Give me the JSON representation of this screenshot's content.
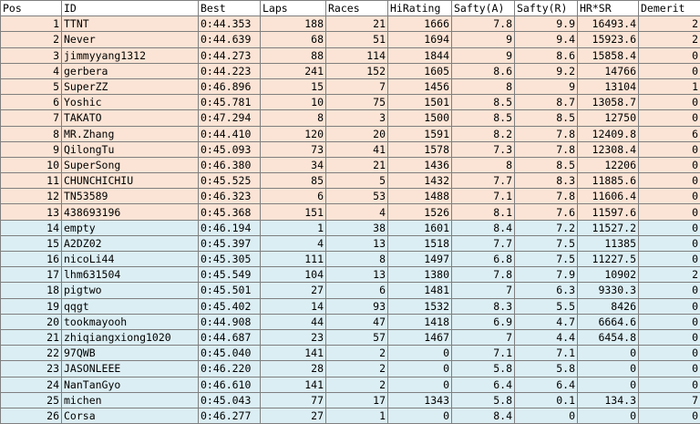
{
  "headers": [
    "Pos",
    "ID",
    "Best",
    "Laps",
    "Races",
    "HiRating",
    "Safty(A)",
    "Safty(R)",
    "HR*SR",
    "Demerit"
  ],
  "rows": [
    [
      "1",
      "TTNT",
      "0:44.353",
      "188",
      "21",
      "1666",
      "7.8",
      "9.9",
      "16493.4",
      "2"
    ],
    [
      "2",
      "Never",
      "0:44.639",
      "68",
      "51",
      "1694",
      "9",
      "9.4",
      "15923.6",
      "2"
    ],
    [
      "3",
      "jimmyyang1312",
      "0:44.273",
      "88",
      "114",
      "1844",
      "9",
      "8.6",
      "15858.4",
      "0"
    ],
    [
      "4",
      "gerbera",
      "0:44.223",
      "241",
      "152",
      "1605",
      "8.6",
      "9.2",
      "14766",
      "0"
    ],
    [
      "5",
      "SuperZZ",
      "0:46.896",
      "15",
      "7",
      "1456",
      "8",
      "9",
      "13104",
      "1"
    ],
    [
      "6",
      "Yoshic",
      "0:45.781",
      "10",
      "75",
      "1501",
      "8.5",
      "8.7",
      "13058.7",
      "0"
    ],
    [
      "7",
      "TAKATO",
      "0:47.294",
      "8",
      "3",
      "1500",
      "8.5",
      "8.5",
      "12750",
      "0"
    ],
    [
      "8",
      "MR.Zhang",
      "0:44.410",
      "120",
      "20",
      "1591",
      "8.2",
      "7.8",
      "12409.8",
      "6"
    ],
    [
      "9",
      "QilongTu",
      "0:45.093",
      "73",
      "41",
      "1578",
      "7.3",
      "7.8",
      "12308.4",
      "0"
    ],
    [
      "10",
      "SuperSong",
      "0:46.380",
      "34",
      "21",
      "1436",
      "8",
      "8.5",
      "12206",
      "0"
    ],
    [
      "11",
      "CHUNCHICHIU",
      "0:45.525",
      "85",
      "5",
      "1432",
      "7.7",
      "8.3",
      "11885.6",
      "0"
    ],
    [
      "12",
      "TN53589",
      "0:46.323",
      "6",
      "53",
      "1488",
      "7.1",
      "7.8",
      "11606.4",
      "0"
    ],
    [
      "13",
      "438693196",
      "0:45.368",
      "151",
      "4",
      "1526",
      "8.1",
      "7.6",
      "11597.6",
      "0"
    ],
    [
      "14",
      "empty",
      "0:46.194",
      "1",
      "38",
      "1601",
      "8.4",
      "7.2",
      "11527.2",
      "0"
    ],
    [
      "15",
      "A2DZ02",
      "0:45.397",
      "4",
      "13",
      "1518",
      "7.7",
      "7.5",
      "11385",
      "0"
    ],
    [
      "16",
      "nicoLi44",
      "0:45.305",
      "111",
      "8",
      "1497",
      "6.8",
      "7.5",
      "11227.5",
      "0"
    ],
    [
      "17",
      "lhm631504",
      "0:45.549",
      "104",
      "13",
      "1380",
      "7.8",
      "7.9",
      "10902",
      "2"
    ],
    [
      "18",
      "pigtwo",
      "0:45.501",
      "27",
      "6",
      "1481",
      "7",
      "6.3",
      "9330.3",
      "0"
    ],
    [
      "19",
      "qqgt",
      "0:45.402",
      "14",
      "93",
      "1532",
      "8.3",
      "5.5",
      "8426",
      "0"
    ],
    [
      "20",
      "tookmayooh",
      "0:44.908",
      "44",
      "47",
      "1418",
      "6.9",
      "4.7",
      "6664.6",
      "0"
    ],
    [
      "21",
      "zhiqiangxiong1020",
      "0:44.687",
      "23",
      "57",
      "1467",
      "7",
      "4.4",
      "6454.8",
      "0"
    ],
    [
      "22",
      "97QWB",
      "0:45.040",
      "141",
      "2",
      "0",
      "7.1",
      "7.1",
      "0",
      "0"
    ],
    [
      "23",
      "JASONLEEE",
      "0:46.220",
      "28",
      "2",
      "0",
      "5.8",
      "5.8",
      "0",
      "0"
    ],
    [
      "24",
      "NanTanGyo",
      "0:46.610",
      "141",
      "2",
      "0",
      "6.4",
      "6.4",
      "0",
      "0"
    ],
    [
      "25",
      "michen",
      "0:45.043",
      "77",
      "17",
      "1343",
      "5.8",
      "0.1",
      "134.3",
      "7"
    ],
    [
      "26",
      "Corsa",
      "0:46.277",
      "27",
      "1",
      "0",
      "8.4",
      "0",
      "0",
      "0"
    ]
  ],
  "colors": {
    "orange_rows": "#fbe4d5",
    "blue_rows": "#dbeef3",
    "grid": "#7f7f7f"
  }
}
